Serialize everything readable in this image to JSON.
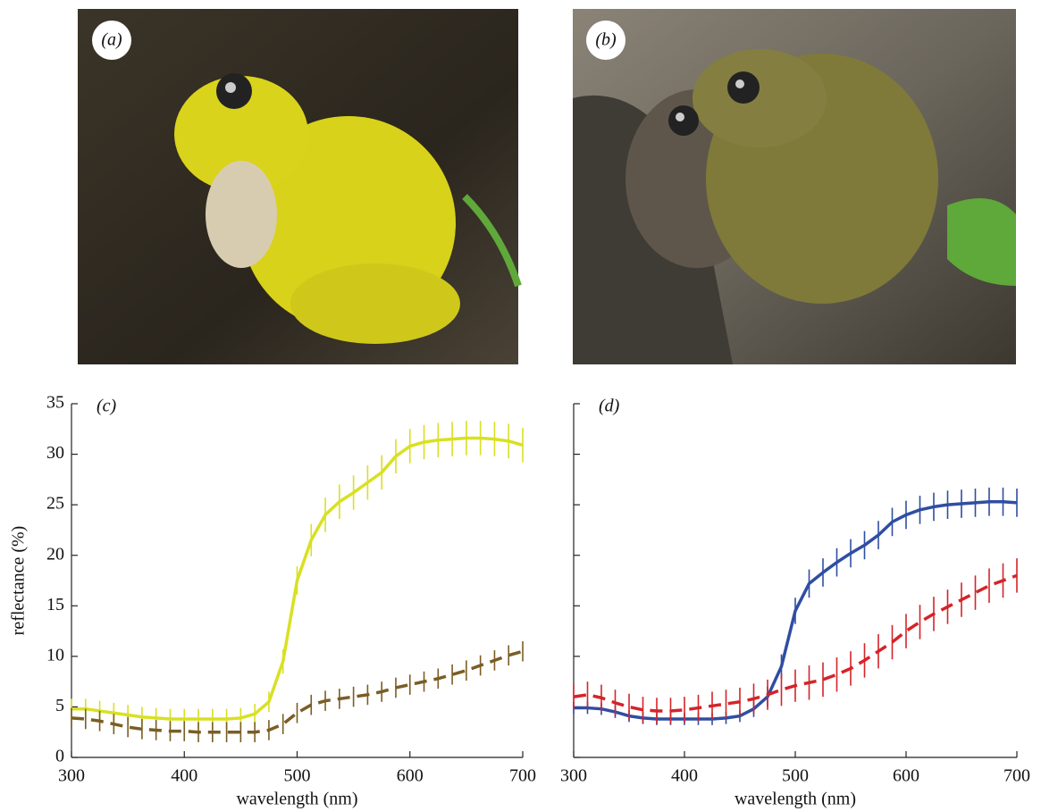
{
  "photos": [
    {
      "label": "(a)"
    },
    {
      "label": "(b)"
    }
  ],
  "chart_data": [
    {
      "type": "line",
      "panel_label": "(c)",
      "xlabel": "wavelength (nm)",
      "ylabel": "reflectance (%)",
      "xlim": [
        300,
        700
      ],
      "ylim": [
        0,
        35
      ],
      "xticks": [
        300,
        400,
        500,
        600,
        700
      ],
      "yticks": [
        0,
        5,
        10,
        15,
        20,
        25,
        30,
        35
      ],
      "ytick_labels": true,
      "x": [
        300,
        312.5,
        325,
        337.5,
        350,
        362.5,
        375,
        387.5,
        400,
        412.5,
        425,
        437.5,
        450,
        462.5,
        475,
        487.5,
        500,
        512.5,
        525,
        537.5,
        550,
        562.5,
        575,
        587.5,
        600,
        612.5,
        625,
        637.5,
        650,
        662.5,
        675,
        687.5,
        700
      ],
      "series": [
        {
          "color": "#d9e022",
          "dash": false,
          "values": [
            4.8,
            4.8,
            4.6,
            4.4,
            4.2,
            4.0,
            3.9,
            3.8,
            3.8,
            3.8,
            3.8,
            3.8,
            3.9,
            4.3,
            5.5,
            9.5,
            17.5,
            21.5,
            24.0,
            25.3,
            26.2,
            27.2,
            28.2,
            29.8,
            30.8,
            31.2,
            31.4,
            31.5,
            31.6,
            31.6,
            31.5,
            31.3,
            30.9
          ],
          "errors": [
            1.0,
            1.0,
            1.0,
            1.0,
            1.0,
            1.0,
            1.0,
            1.0,
            1.0,
            1.0,
            1.0,
            1.0,
            1.0,
            1.0,
            1.0,
            1.2,
            1.4,
            1.6,
            1.7,
            1.7,
            1.7,
            1.7,
            1.7,
            1.7,
            1.7,
            1.7,
            1.7,
            1.7,
            1.7,
            1.7,
            1.7,
            1.7,
            1.7
          ]
        },
        {
          "color": "#7b5d24",
          "dash": true,
          "values": [
            3.9,
            3.8,
            3.6,
            3.3,
            3.0,
            2.8,
            2.7,
            2.6,
            2.6,
            2.5,
            2.5,
            2.5,
            2.5,
            2.5,
            2.7,
            3.3,
            4.4,
            5.2,
            5.6,
            5.8,
            6.0,
            6.2,
            6.5,
            6.9,
            7.2,
            7.5,
            7.8,
            8.2,
            8.6,
            9.1,
            9.6,
            10.1,
            10.5
          ],
          "errors": [
            1.0,
            1.0,
            1.0,
            1.0,
            1.0,
            1.0,
            1.0,
            1.0,
            1.0,
            1.0,
            1.0,
            1.0,
            1.0,
            1.0,
            1.0,
            1.0,
            1.0,
            1.0,
            1.0,
            1.0,
            1.0,
            1.0,
            1.0,
            1.0,
            1.0,
            1.0,
            1.0,
            1.0,
            1.0,
            1.0,
            1.0,
            1.0,
            1.0
          ]
        }
      ]
    },
    {
      "type": "line",
      "panel_label": "(d)",
      "xlabel": "wavelength (nm)",
      "xlim": [
        300,
        700
      ],
      "ylim": [
        0,
        35
      ],
      "xticks": [
        300,
        400,
        500,
        600,
        700
      ],
      "yticks": [
        0,
        5,
        10,
        15,
        20,
        25,
        30,
        35
      ],
      "ytick_labels": false,
      "x": [
        300,
        312.5,
        325,
        337.5,
        350,
        362.5,
        375,
        387.5,
        400,
        412.5,
        425,
        437.5,
        450,
        462.5,
        475,
        487.5,
        500,
        512.5,
        525,
        537.5,
        550,
        562.5,
        575,
        587.5,
        600,
        612.5,
        625,
        637.5,
        650,
        662.5,
        675,
        687.5,
        700
      ],
      "series": [
        {
          "color": "#2f4ea2",
          "dash": false,
          "values": [
            4.9,
            4.9,
            4.8,
            4.5,
            4.1,
            3.9,
            3.8,
            3.8,
            3.8,
            3.8,
            3.8,
            3.9,
            4.1,
            4.8,
            6.0,
            9.0,
            14.5,
            17.2,
            18.3,
            19.3,
            20.2,
            21.0,
            22.0,
            23.3,
            24.0,
            24.5,
            24.8,
            25.0,
            25.1,
            25.2,
            25.3,
            25.3,
            25.2
          ],
          "errors": [
            0.6,
            0.6,
            0.6,
            0.6,
            0.6,
            0.6,
            0.6,
            0.6,
            0.6,
            0.6,
            0.6,
            0.6,
            0.6,
            0.8,
            1.0,
            1.2,
            1.3,
            1.4,
            1.4,
            1.4,
            1.4,
            1.4,
            1.4,
            1.4,
            1.4,
            1.4,
            1.4,
            1.4,
            1.4,
            1.4,
            1.4,
            1.4,
            1.4
          ]
        },
        {
          "color": "#d42429",
          "dash": true,
          "values": [
            6.0,
            6.2,
            5.9,
            5.4,
            5.0,
            4.7,
            4.6,
            4.6,
            4.7,
            4.9,
            5.1,
            5.3,
            5.5,
            5.8,
            6.2,
            6.7,
            7.1,
            7.4,
            7.7,
            8.2,
            8.8,
            9.6,
            10.5,
            11.4,
            12.5,
            13.4,
            14.2,
            14.9,
            15.6,
            16.3,
            17.0,
            17.5,
            18.0
          ],
          "errors": [
            1.2,
            1.3,
            1.3,
            1.3,
            1.3,
            1.3,
            1.3,
            1.3,
            1.3,
            1.3,
            1.4,
            1.4,
            1.4,
            1.5,
            1.5,
            1.6,
            1.6,
            1.7,
            1.7,
            1.7,
            1.7,
            1.7,
            1.7,
            1.7,
            1.7,
            1.7,
            1.7,
            1.7,
            1.7,
            1.7,
            1.7,
            1.7,
            1.7
          ]
        }
      ]
    }
  ]
}
